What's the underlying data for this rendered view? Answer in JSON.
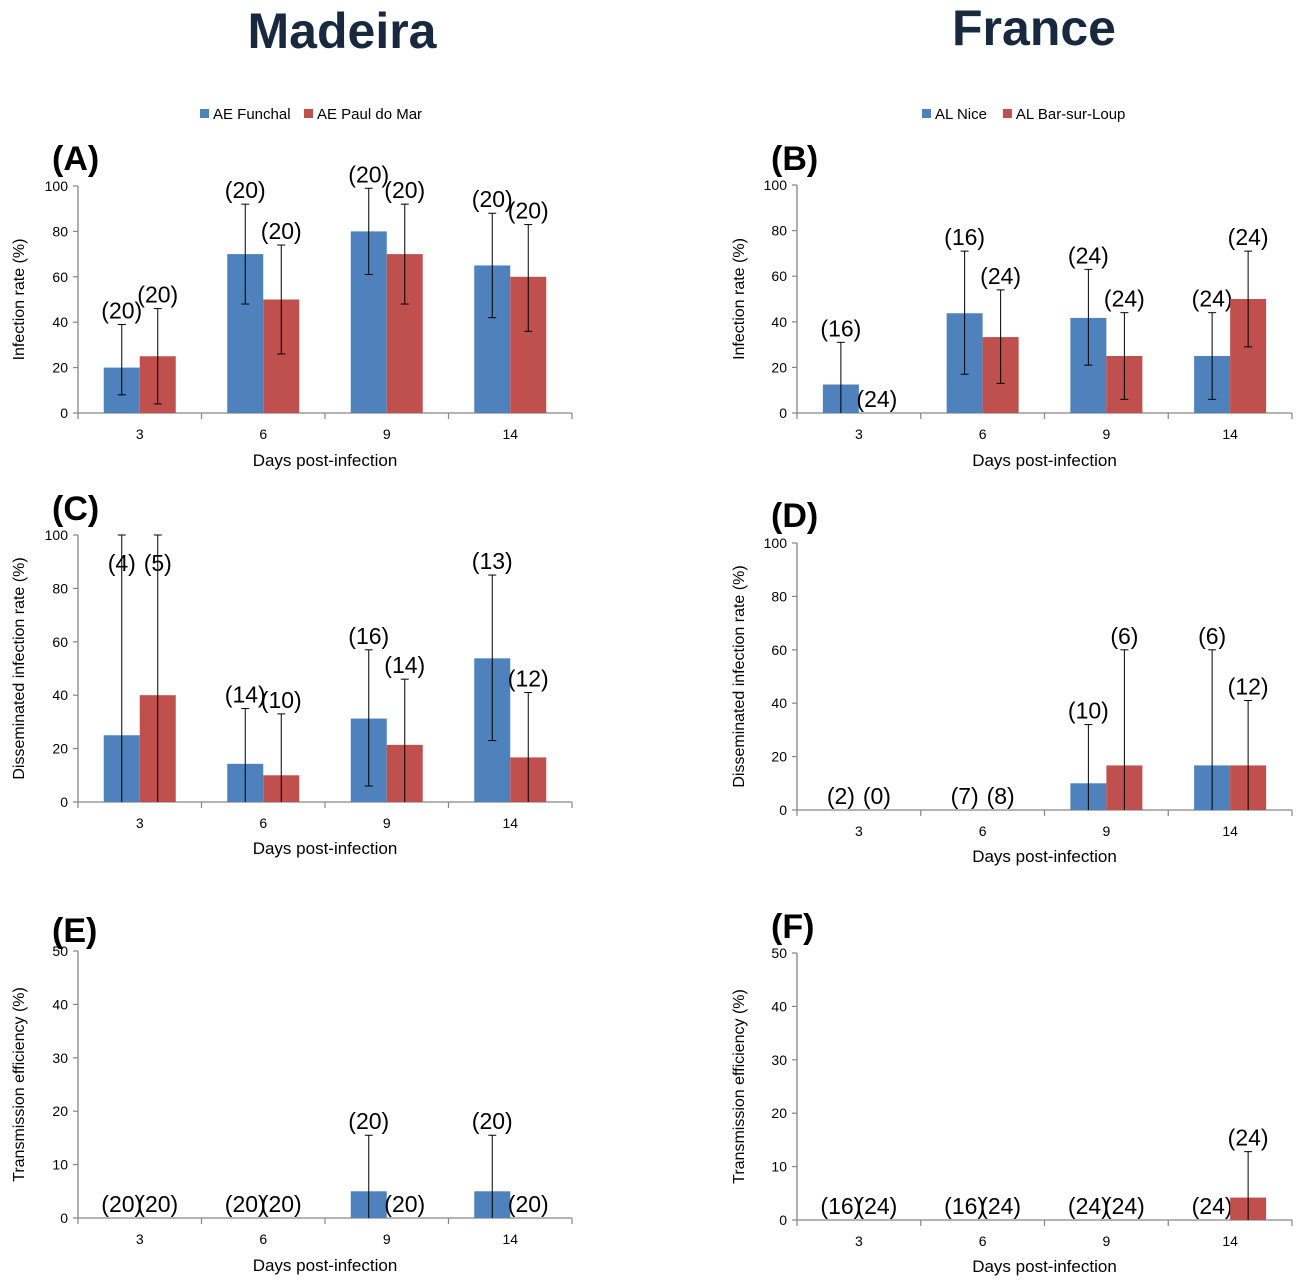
{
  "headers": {
    "left": "Madeira",
    "right": "France"
  },
  "colors": {
    "series1": "#4f81bd",
    "series2": "#c0504d"
  },
  "chart_data": [
    {
      "id": "A",
      "type": "bar",
      "label": "(A)",
      "legend": [
        "AE Funchal",
        "AE Paul do  Mar"
      ],
      "categories": [
        "3",
        "6",
        "9",
        "14"
      ],
      "xlabel": "Days post-infection",
      "ylabel": "Infection rate (%)",
      "ylim": [
        0,
        100
      ],
      "yticks": [
        0,
        20,
        40,
        60,
        80,
        100
      ],
      "series": [
        {
          "name": "AE Funchal",
          "values": [
            20,
            70,
            80,
            65
          ],
          "err_upper": [
            39,
            92,
            99,
            88
          ],
          "err_lower": [
            8,
            48,
            61,
            42
          ],
          "n": [
            "(20)",
            "(20)",
            "(20)",
            "(20)"
          ]
        },
        {
          "name": "AE Paul do  Mar",
          "values": [
            25,
            50,
            70,
            60
          ],
          "err_upper": [
            46,
            74,
            92,
            83
          ],
          "err_lower": [
            4,
            26,
            48,
            36
          ],
          "n": [
            "(20)",
            "(20)",
            "(20)",
            "(20)"
          ]
        }
      ]
    },
    {
      "id": "B",
      "type": "bar",
      "label": "(B)",
      "legend": [
        "AL Nice",
        "AL Bar-sur-Loup"
      ],
      "categories": [
        "3",
        "6",
        "9",
        "14"
      ],
      "xlabel": "Days post-infection",
      "ylabel": "Infection rate (%)",
      "ylim": [
        0,
        100
      ],
      "yticks": [
        0,
        20,
        40,
        60,
        80,
        100
      ],
      "series": [
        {
          "name": "AL Nice",
          "values": [
            12.5,
            43.75,
            41.7,
            25
          ],
          "err_upper": [
            31,
            71,
            63,
            44
          ],
          "err_lower": [
            0,
            17,
            21,
            6
          ],
          "n": [
            "(16)",
            "(16)",
            "(24)",
            "(24)"
          ]
        },
        {
          "name": "AL Bar-sur-Loup",
          "values": [
            0,
            33.3,
            25,
            50
          ],
          "err_upper": [
            null,
            54,
            44,
            71
          ],
          "err_lower": [
            null,
            13,
            6,
            29
          ],
          "n": [
            "(24)",
            "(24)",
            "(24)",
            "(24)"
          ]
        }
      ]
    },
    {
      "id": "C",
      "type": "bar",
      "label": "(C)",
      "categories": [
        "3",
        "6",
        "9",
        "14"
      ],
      "xlabel": "Days post-infection",
      "ylabel": "Disseminated infection rate (%)",
      "ylim": [
        0,
        100
      ],
      "yticks": [
        0,
        20,
        40,
        60,
        80,
        100
      ],
      "series": [
        {
          "values": [
            25,
            14.3,
            31.25,
            53.8
          ],
          "err_upper": [
            100,
            35,
            57,
            85
          ],
          "err_lower": [
            0,
            0,
            6,
            23
          ],
          "n": [
            "(4)",
            "(14)",
            "(16)",
            "(13)"
          ]
        },
        {
          "values": [
            40,
            10,
            21.4,
            16.7
          ],
          "err_upper": [
            100,
            33,
            46,
            41
          ],
          "err_lower": [
            0,
            0,
            0,
            0
          ],
          "n": [
            "(5)",
            "(10)",
            "(14)",
            "(12)"
          ]
        }
      ]
    },
    {
      "id": "D",
      "type": "bar",
      "label": "(D)",
      "categories": [
        "3",
        "6",
        "9",
        "14"
      ],
      "xlabel": "Days post-infection",
      "ylabel": "Disseminated infection rate (%)",
      "ylim": [
        0,
        100
      ],
      "yticks": [
        0,
        20,
        40,
        60,
        80,
        100
      ],
      "series": [
        {
          "values": [
            0,
            0,
            10,
            16.7
          ],
          "err_upper": [
            null,
            null,
            32,
            60
          ],
          "err_lower": [
            null,
            null,
            0,
            0
          ],
          "n": [
            "(2)",
            "(7)",
            "(10)",
            "(6)"
          ]
        },
        {
          "values": [
            0,
            0,
            16.7,
            16.7
          ],
          "err_upper": [
            null,
            null,
            60,
            41
          ],
          "err_lower": [
            null,
            null,
            0,
            0
          ],
          "n": [
            "(0)",
            "(8)",
            "(6)",
            "(12)"
          ]
        }
      ]
    },
    {
      "id": "E",
      "type": "bar",
      "label": "(E)",
      "categories": [
        "3",
        "6",
        "9",
        "14"
      ],
      "xlabel": "Days post-infection",
      "ylabel": "Transmission efficiency (%)",
      "ylim": [
        0,
        50
      ],
      "yticks": [
        0,
        10,
        20,
        30,
        40,
        50
      ],
      "series": [
        {
          "values": [
            0,
            0,
            5,
            5
          ],
          "err_upper": [
            null,
            null,
            15.5,
            15.5
          ],
          "err_lower": [
            null,
            null,
            0,
            0
          ],
          "n": [
            "(20)",
            "(20)",
            "(20)",
            "(20)"
          ]
        },
        {
          "values": [
            0,
            0,
            0,
            0
          ],
          "err_upper": [
            null,
            null,
            null,
            null
          ],
          "err_lower": [
            null,
            null,
            null,
            null
          ],
          "n": [
            "(20)",
            "(20)",
            "(20)",
            "(20)"
          ]
        }
      ]
    },
    {
      "id": "F",
      "type": "bar",
      "label": "(F)",
      "categories": [
        "3",
        "6",
        "9",
        "14"
      ],
      "xlabel": "Days post-infection",
      "ylabel": "Transmission efficiency (%)",
      "ylim": [
        0,
        50
      ],
      "yticks": [
        0,
        10,
        20,
        30,
        40,
        50
      ],
      "series": [
        {
          "values": [
            0,
            0,
            0,
            0
          ],
          "err_upper": [
            null,
            null,
            null,
            null
          ],
          "err_lower": [
            null,
            null,
            null,
            null
          ],
          "n": [
            "(16)",
            "(16)",
            "(24)",
            "(24)"
          ]
        },
        {
          "values": [
            0,
            0,
            0,
            4.2
          ],
          "err_upper": [
            null,
            null,
            null,
            12.8
          ],
          "err_lower": [
            null,
            null,
            null,
            0
          ],
          "n": [
            "(24)",
            "(24)",
            "(24)",
            "(24)"
          ]
        }
      ]
    }
  ]
}
